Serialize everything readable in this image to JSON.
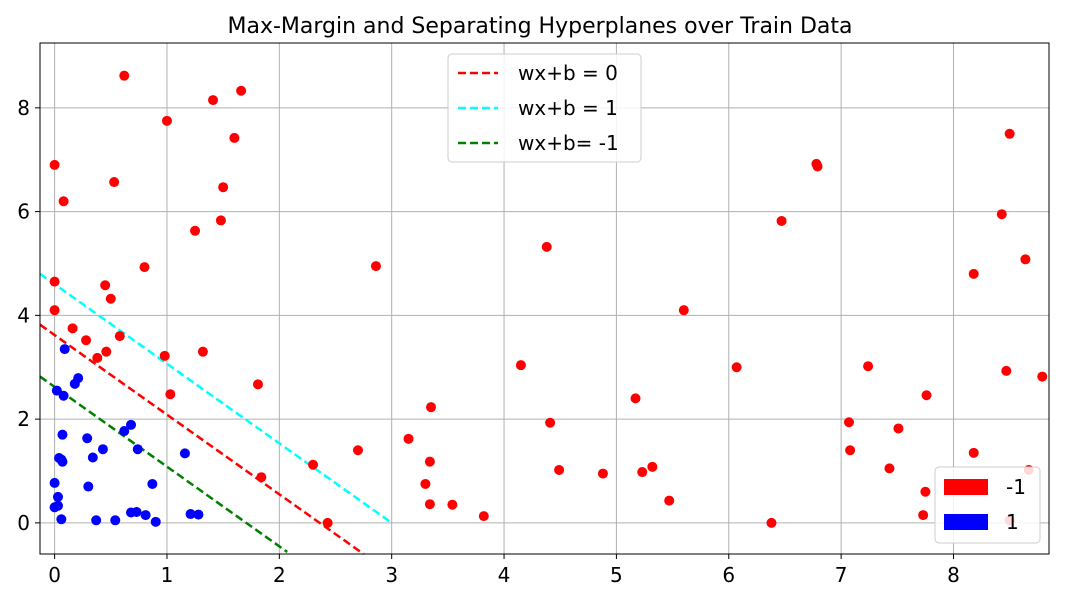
{
  "chart_data": {
    "type": "scatter",
    "title": "Max-Margin and Separating Hyperplanes over Train Data",
    "xlabel": "",
    "ylabel": "",
    "xlim": [
      -0.13,
      8.85
    ],
    "ylim": [
      -0.6,
      9.25
    ],
    "xticks": [
      0,
      1,
      2,
      3,
      4,
      5,
      6,
      7,
      8
    ],
    "yticks": [
      0,
      2,
      4,
      6,
      8
    ],
    "grid": true,
    "colors": {
      "neg": "#ff0000",
      "pos": "#0000ff",
      "h0": "#ff0000",
      "h1": "#00ffff",
      "hm1": "#008000"
    },
    "lines": [
      {
        "name": "wx+b = 0",
        "color": "#ff0000",
        "x": [
          -0.13,
          2.75
        ],
        "y": [
          3.82,
          -0.6
        ]
      },
      {
        "name": "wx+b = 1",
        "color": "#00ffff",
        "x": [
          -0.13,
          3.0
        ],
        "y": [
          4.8,
          0.0
        ]
      },
      {
        "name": "wx+b= -1",
        "color": "#008000",
        "x": [
          -0.13,
          2.07
        ],
        "y": [
          2.82,
          -0.56
        ]
      }
    ],
    "class_legend": [
      {
        "name": "-1",
        "color": "#ff0000"
      },
      {
        "name": "1",
        "color": "#0000ff"
      }
    ],
    "series": [
      {
        "name": "-1",
        "color": "#ff0000",
        "points": [
          [
            0.0,
            6.9
          ],
          [
            0.0,
            4.65
          ],
          [
            0.0,
            4.1
          ],
          [
            0.08,
            6.2
          ],
          [
            0.16,
            3.75
          ],
          [
            0.28,
            3.52
          ],
          [
            0.38,
            3.18
          ],
          [
            0.45,
            4.58
          ],
          [
            0.46,
            3.3
          ],
          [
            0.5,
            4.32
          ],
          [
            0.53,
            6.57
          ],
          [
            0.58,
            3.6
          ],
          [
            0.62,
            8.62
          ],
          [
            0.8,
            4.93
          ],
          [
            0.98,
            3.22
          ],
          [
            1.0,
            7.75
          ],
          [
            1.03,
            2.48
          ],
          [
            1.25,
            5.63
          ],
          [
            1.32,
            3.3
          ],
          [
            1.41,
            8.15
          ],
          [
            1.48,
            5.83
          ],
          [
            1.5,
            6.47
          ],
          [
            1.6,
            7.42
          ],
          [
            1.66,
            8.33
          ],
          [
            1.81,
            2.67
          ],
          [
            1.84,
            0.88
          ],
          [
            2.3,
            1.12
          ],
          [
            2.43,
            0.0
          ],
          [
            2.7,
            1.4
          ],
          [
            2.86,
            4.95
          ],
          [
            3.15,
            1.62
          ],
          [
            3.3,
            0.75
          ],
          [
            3.34,
            0.36
          ],
          [
            3.34,
            1.18
          ],
          [
            3.35,
            2.23
          ],
          [
            3.54,
            0.35
          ],
          [
            3.82,
            0.13
          ],
          [
            4.15,
            3.04
          ],
          [
            4.38,
            5.32
          ],
          [
            4.41,
            1.93
          ],
          [
            4.49,
            1.02
          ],
          [
            4.88,
            0.95
          ],
          [
            5.17,
            2.4
          ],
          [
            5.23,
            0.98
          ],
          [
            5.32,
            1.08
          ],
          [
            5.47,
            0.43
          ],
          [
            5.6,
            4.1
          ],
          [
            6.07,
            3.0
          ],
          [
            6.38,
            0.0
          ],
          [
            6.47,
            5.82
          ],
          [
            6.78,
            6.92
          ],
          [
            6.79,
            6.87
          ],
          [
            7.07,
            1.94
          ],
          [
            7.08,
            1.4
          ],
          [
            7.24,
            3.02
          ],
          [
            7.43,
            1.05
          ],
          [
            7.51,
            1.82
          ],
          [
            7.73,
            0.15
          ],
          [
            7.75,
            0.6
          ],
          [
            7.76,
            2.46
          ],
          [
            8.18,
            1.35
          ],
          [
            8.18,
            4.8
          ],
          [
            8.43,
            5.95
          ],
          [
            8.47,
            2.93
          ],
          [
            8.5,
            7.5
          ],
          [
            8.64,
            5.08
          ],
          [
            8.67,
            1.02
          ],
          [
            8.79,
            2.82
          ],
          [
            8.5,
            0.05
          ]
        ]
      },
      {
        "name": "1",
        "color": "#0000ff",
        "points": [
          [
            0.0,
            0.3
          ],
          [
            0.0,
            0.77
          ],
          [
            0.02,
            2.55
          ],
          [
            0.03,
            0.5
          ],
          [
            0.03,
            0.33
          ],
          [
            0.04,
            1.25
          ],
          [
            0.06,
            1.22
          ],
          [
            0.06,
            0.07
          ],
          [
            0.07,
            1.18
          ],
          [
            0.07,
            1.7
          ],
          [
            0.08,
            2.45
          ],
          [
            0.09,
            3.35
          ],
          [
            0.18,
            2.68
          ],
          [
            0.21,
            2.79
          ],
          [
            0.29,
            1.63
          ],
          [
            0.3,
            0.7
          ],
          [
            0.34,
            1.26
          ],
          [
            0.37,
            0.05
          ],
          [
            0.43,
            1.42
          ],
          [
            0.54,
            0.05
          ],
          [
            0.62,
            1.77
          ],
          [
            0.68,
            1.89
          ],
          [
            0.68,
            0.2
          ],
          [
            0.73,
            0.21
          ],
          [
            0.74,
            1.42
          ],
          [
            0.81,
            0.15
          ],
          [
            0.87,
            0.75
          ],
          [
            0.9,
            0.02
          ],
          [
            1.16,
            1.34
          ],
          [
            1.21,
            0.17
          ],
          [
            1.28,
            0.16
          ]
        ]
      }
    ]
  }
}
